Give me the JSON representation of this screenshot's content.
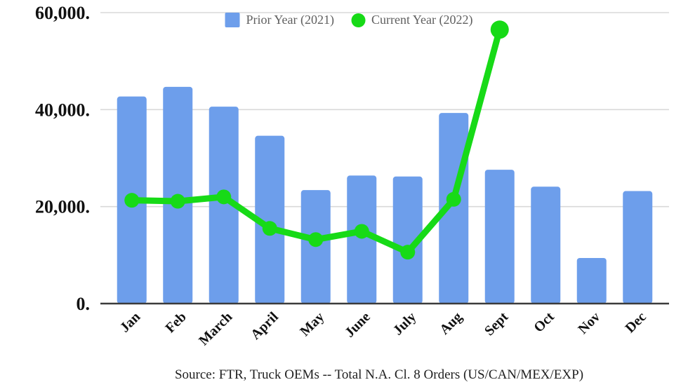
{
  "chart_data": {
    "type": "combo",
    "title": "",
    "categories": [
      "Jan",
      "Feb",
      "March",
      "April",
      "May",
      "June",
      "July",
      "Aug",
      "Sept",
      "Oct",
      "Nov",
      "Dec"
    ],
    "series": [
      {
        "name": "Prior Year (2021)",
        "type": "bar",
        "color": "#6d9eeb",
        "values": [
          42700,
          44700,
          40600,
          34600,
          23400,
          26400,
          26200,
          39300,
          27600,
          24100,
          9400,
          23200
        ]
      },
      {
        "name": "Current Year (2022)",
        "type": "line",
        "color": "#17da17",
        "values": [
          21300,
          21100,
          22000,
          15500,
          13200,
          14900,
          10600,
          21500,
          56500,
          null,
          null,
          null
        ]
      }
    ],
    "ylim": [
      0,
      60000
    ],
    "yticks": [
      {
        "label": "0.",
        "value": 0
      },
      {
        "label": "20,000.",
        "value": 20000
      },
      {
        "label": "40,000.",
        "value": 40000
      },
      {
        "label": "60,000.",
        "value": 60000
      }
    ],
    "grid": "horizontal",
    "legend_position": "top",
    "axis_color": "#3b3b3b",
    "gridline_color": "#d9d9d9",
    "source": "Source: FTR, Truck OEMs -- Total N.A. Cl. 8 Orders (US/CAN/MEX/EXP)"
  }
}
